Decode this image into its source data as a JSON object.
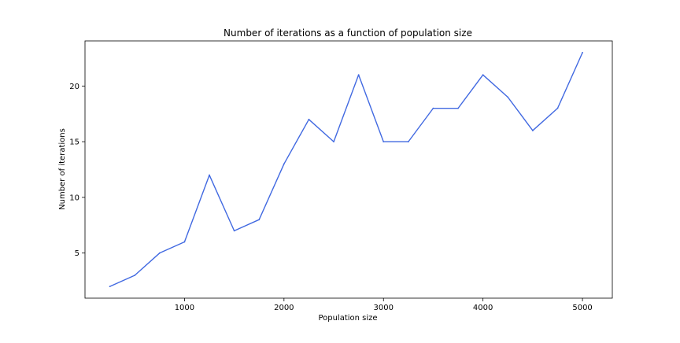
{
  "chart_data": {
    "type": "line",
    "title": "Number of iterations as a function of population size",
    "xlabel": "Population size",
    "ylabel": "Number of iterations",
    "xlim": [
      0,
      5300
    ],
    "ylim": [
      0.95,
      24.05
    ],
    "xticks": [
      1000,
      2000,
      3000,
      4000,
      5000
    ],
    "xtick_labels": [
      "1000",
      "2000",
      "3000",
      "4000",
      "5000"
    ],
    "yticks": [
      5,
      10,
      15,
      20
    ],
    "ytick_labels": [
      "5",
      "10",
      "15",
      "20"
    ],
    "grid": false,
    "line_color": "#4169e1",
    "series": [
      {
        "x": [
          250,
          500,
          750,
          1000,
          1250,
          1500,
          1750,
          2000,
          2250,
          2500,
          2750,
          3000,
          3250,
          3500,
          3750,
          4000,
          4250,
          4500,
          4750,
          5000
        ],
        "y": [
          2,
          3,
          5,
          6,
          12,
          7,
          8,
          13,
          17,
          15,
          21,
          15,
          15,
          18,
          18,
          21,
          19,
          16,
          18,
          23
        ]
      }
    ]
  }
}
